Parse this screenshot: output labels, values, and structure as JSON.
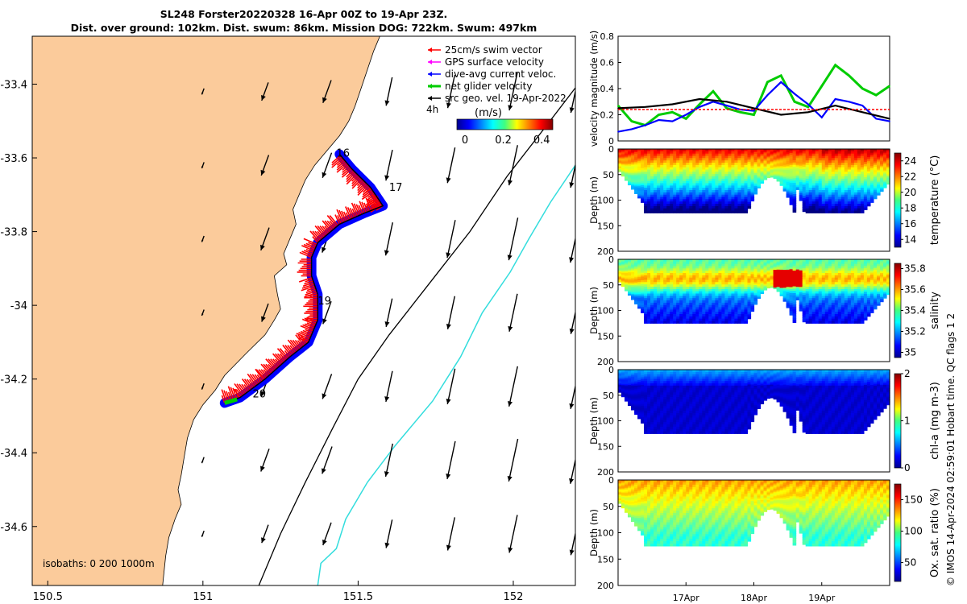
{
  "title": {
    "line1": "SL248 Forster20220328 16-Apr 00Z to 19-Apr 23Z.",
    "line2": "Dist. over ground: 102km. Dist. swum: 86km. Mission DOG: 722km. Swum: 497km"
  },
  "credit": "© IMOS 14-Apr-2024 02:59:01 Hobart time. QC flags 1  2",
  "colors": {
    "land": "#fbcb9b",
    "swim": "#ff0000",
    "gps": "#ff00ff",
    "current": "#0000ff",
    "net": "#00cc00",
    "srcgeo": "#000000",
    "isobath_200": "#000000",
    "isobath_1000": "#33dddd"
  },
  "map": {
    "xlim": [
      150.45,
      152.2
    ],
    "ylim": [
      -34.76,
      -33.27
    ],
    "x_ticks": [
      "150.5",
      "151",
      "151.5",
      "152"
    ],
    "y_ticks": [
      "-33.4",
      "-33.6",
      "-33.8",
      "-34",
      "-34.2",
      "-34.4",
      "-34.6"
    ],
    "legend": [
      {
        "label": "25cm/s swim vector",
        "key": "swim"
      },
      {
        "label": "GPS surface velocity",
        "key": "gps"
      },
      {
        "label": "dive-avg current veloc.",
        "key": "current"
      },
      {
        "label": "net glider velocity",
        "key": "net"
      },
      {
        "label": "src geo. vel. 19-Apr-2022",
        "key": "srcgeo"
      }
    ],
    "interval_label": "4h",
    "colorbar_label": "(m/s)",
    "colorbar_ticks": [
      "0",
      "0.2",
      "0.4"
    ],
    "isobaths_label": "isobaths: 0   200  1000m",
    "day_labels": [
      {
        "text": "16",
        "lon": 151.43,
        "lat": -33.597
      },
      {
        "text": "17",
        "lon": 151.6,
        "lat": -33.69
      },
      {
        "text": "19",
        "lon": 151.37,
        "lat": -33.998
      },
      {
        "text": "20",
        "lon": 151.16,
        "lat": -34.25
      }
    ],
    "track": [
      [
        151.07,
        -34.265
      ],
      [
        151.12,
        -34.25
      ],
      [
        151.2,
        -34.2
      ],
      [
        151.28,
        -34.14
      ],
      [
        151.34,
        -34.1
      ],
      [
        151.37,
        -34.04
      ],
      [
        151.37,
        -33.97
      ],
      [
        151.35,
        -33.92
      ],
      [
        151.35,
        -33.87
      ],
      [
        151.37,
        -33.83
      ],
      [
        151.44,
        -33.78
      ],
      [
        151.52,
        -33.75
      ],
      [
        151.58,
        -33.73
      ],
      [
        151.54,
        -33.68
      ],
      [
        151.48,
        -33.63
      ],
      [
        151.44,
        -33.59
      ]
    ],
    "coast": [
      [
        150.45,
        -33.27
      ],
      [
        151.57,
        -33.27
      ],
      [
        151.55,
        -33.31
      ],
      [
        151.53,
        -33.36
      ],
      [
        151.51,
        -33.41
      ],
      [
        151.49,
        -33.46
      ],
      [
        151.47,
        -33.5
      ],
      [
        151.44,
        -33.54
      ],
      [
        151.4,
        -33.58
      ],
      [
        151.36,
        -33.62
      ],
      [
        151.33,
        -33.66
      ],
      [
        151.31,
        -33.7
      ],
      [
        151.29,
        -33.74
      ],
      [
        151.3,
        -33.78
      ],
      [
        151.28,
        -33.82
      ],
      [
        151.26,
        -33.86
      ],
      [
        151.27,
        -33.89
      ],
      [
        151.23,
        -33.92
      ],
      [
        151.24,
        -33.97
      ],
      [
        151.25,
        -34.01
      ],
      [
        151.23,
        -34.04
      ],
      [
        151.2,
        -34.08
      ],
      [
        151.14,
        -34.13
      ],
      [
        151.07,
        -34.19
      ],
      [
        151.04,
        -34.23
      ],
      [
        151.0,
        -34.27
      ],
      [
        150.97,
        -34.31
      ],
      [
        150.95,
        -34.36
      ],
      [
        150.94,
        -34.41
      ],
      [
        150.93,
        -34.46
      ],
      [
        150.92,
        -34.5
      ],
      [
        150.93,
        -34.54
      ],
      [
        150.91,
        -34.58
      ],
      [
        150.89,
        -34.63
      ],
      [
        150.88,
        -34.68
      ],
      [
        150.87,
        -34.76
      ],
      [
        150.45,
        -34.76
      ]
    ],
    "isobath_200": [
      [
        152.2,
        -33.41
      ],
      [
        152.1,
        -33.52
      ],
      [
        151.98,
        -33.65
      ],
      [
        151.86,
        -33.8
      ],
      [
        151.73,
        -33.94
      ],
      [
        151.6,
        -34.08
      ],
      [
        151.5,
        -34.2
      ],
      [
        151.42,
        -34.33
      ],
      [
        151.33,
        -34.48
      ],
      [
        151.25,
        -34.62
      ],
      [
        151.18,
        -34.76
      ]
    ],
    "isobath_1000": [
      [
        152.2,
        -33.62
      ],
      [
        152.12,
        -33.72
      ],
      [
        152.05,
        -33.82
      ],
      [
        151.99,
        -33.91
      ],
      [
        151.9,
        -34.02
      ],
      [
        151.83,
        -34.14
      ],
      [
        151.74,
        -34.26
      ],
      [
        151.62,
        -34.38
      ],
      [
        151.53,
        -34.48
      ],
      [
        151.46,
        -34.58
      ],
      [
        151.43,
        -34.66
      ],
      [
        151.38,
        -34.7
      ],
      [
        151.37,
        -34.76
      ]
    ],
    "current_grid": {
      "lons": [
        151.0,
        151.2,
        151.4,
        151.6,
        151.8,
        152.0,
        152.2
      ],
      "lats": [
        -33.42,
        -33.62,
        -33.82,
        -34.02,
        -34.22,
        -34.42,
        -34.62
      ],
      "note_units": "deg"
    }
  },
  "chart_data": [
    {
      "type": "line",
      "ylabel": "velocity magnitude (m/s)",
      "ylim": [
        0,
        0.8
      ],
      "y_ticks": [
        "0",
        "0.2",
        "0.4",
        "0.6",
        "0.8"
      ],
      "xlim": [
        0,
        4
      ],
      "series": [
        {
          "key": "net",
          "x": [
            0,
            0.2,
            0.4,
            0.6,
            0.8,
            1.0,
            1.2,
            1.4,
            1.6,
            1.8,
            2.0,
            2.2,
            2.4,
            2.6,
            2.8,
            3.0,
            3.2,
            3.4,
            3.6,
            3.8,
            4.0
          ],
          "values": [
            0.27,
            0.15,
            0.12,
            0.2,
            0.22,
            0.17,
            0.28,
            0.38,
            0.25,
            0.22,
            0.2,
            0.45,
            0.5,
            0.3,
            0.26,
            0.42,
            0.58,
            0.5,
            0.4,
            0.35,
            0.42
          ]
        },
        {
          "key": "current",
          "x": [
            0,
            0.2,
            0.4,
            0.6,
            0.8,
            1.0,
            1.2,
            1.4,
            1.6,
            1.8,
            2.0,
            2.2,
            2.4,
            2.6,
            2.8,
            3.0,
            3.2,
            3.4,
            3.6,
            3.8,
            4.0
          ],
          "values": [
            0.07,
            0.09,
            0.12,
            0.16,
            0.15,
            0.2,
            0.26,
            0.3,
            0.27,
            0.24,
            0.23,
            0.35,
            0.45,
            0.36,
            0.28,
            0.18,
            0.32,
            0.3,
            0.27,
            0.17,
            0.15
          ]
        },
        {
          "key": "srcgeo",
          "x": [
            0,
            0.4,
            0.8,
            1.2,
            1.6,
            2.0,
            2.4,
            2.8,
            3.2,
            3.6,
            4.0
          ],
          "values": [
            0.25,
            0.26,
            0.28,
            0.32,
            0.3,
            0.25,
            0.2,
            0.22,
            0.27,
            0.22,
            0.17
          ]
        },
        {
          "key": "swim",
          "x": [
            0,
            4
          ],
          "values": [
            0.24,
            0.24
          ]
        }
      ]
    },
    {
      "type": "heatmap",
      "ylabel": "Depth (m)",
      "colorbar_label": "temperature (°C)",
      "y_ticks": [
        "0",
        "50",
        "100",
        "150",
        "200"
      ],
      "colorbar_ticks": [
        "14",
        "16",
        "18",
        "20",
        "22",
        "24"
      ],
      "clim": [
        13,
        25
      ],
      "profile": "temperature"
    },
    {
      "type": "heatmap",
      "ylabel": "Depth (m)",
      "colorbar_label": "salinity",
      "y_ticks": [
        "0",
        "50",
        "100",
        "150",
        "200"
      ],
      "colorbar_ticks": [
        "35",
        "35.2",
        "35.4",
        "35.6",
        "35.8"
      ],
      "clim": [
        34.95,
        35.85
      ],
      "profile": "salinity"
    },
    {
      "type": "heatmap",
      "ylabel": "Depth (m)",
      "colorbar_label": "chl-a (mg m-3)",
      "y_ticks": [
        "0",
        "50",
        "100",
        "150",
        "200"
      ],
      "colorbar_ticks": [
        "0",
        "1",
        "2"
      ],
      "clim": [
        0,
        2
      ],
      "profile": "chla"
    },
    {
      "type": "heatmap",
      "ylabel": "Depth (m)",
      "colorbar_label": "Ox. sat. ratio (%)",
      "y_ticks": [
        "0",
        "50",
        "100",
        "150",
        "200"
      ],
      "colorbar_ticks": [
        "50",
        "100",
        "150"
      ],
      "clim": [
        20,
        175
      ],
      "profile": "oxygen",
      "x_ticks": [
        "17Apr",
        "18Apr",
        "19Apr"
      ]
    }
  ]
}
